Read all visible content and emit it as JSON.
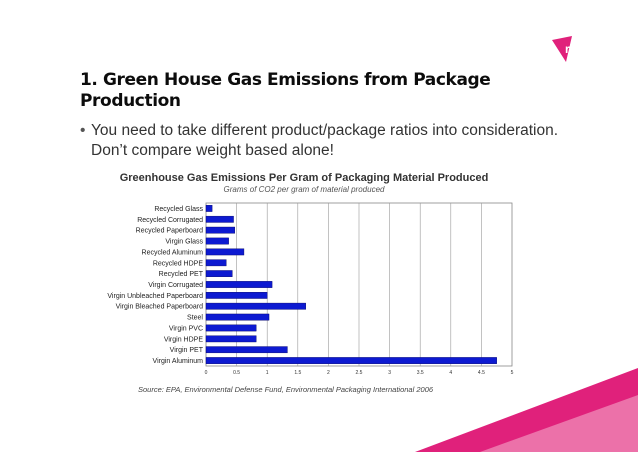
{
  "slide": {
    "title_line1": "1. Green House Gas Emissions from Package",
    "title_line2": "Production",
    "bullet_line1": "You need to take different product/package ratios into consideration.",
    "bullet_line2": "Don’t compare weight based alone!",
    "bullet_icon": "bullet-dot-icon",
    "logo_icon": "brand-logo-icon",
    "accent_color": "#e0217b"
  },
  "chart_data": {
    "type": "bar",
    "orientation": "horizontal",
    "title": "Greenhouse Gas Emissions Per Gram of Packaging Material Produced",
    "subtitle": "Grams of CO2 per gram of material produced",
    "source": "Source: EPA, Environmental Defense Fund, Environmental Packaging International 2006",
    "categories": [
      "Recycled Glass",
      "Recycled Corrugated",
      "Recycled Paperboard",
      "Virgin Glass",
      "Recycled Aluminum",
      "Recycled HDPE",
      "Recycled PET",
      "Virgin Corrugated",
      "Virgin Unbleached Paperboard",
      "Virgin Bleached Paperboard",
      "Steel",
      "Virgin PVC",
      "Virgin HDPE",
      "Virgin PET",
      "Virgin Aluminum"
    ],
    "values": [
      0.1,
      0.45,
      0.47,
      0.37,
      0.62,
      0.33,
      0.43,
      1.08,
      1.0,
      1.63,
      1.03,
      0.82,
      0.82,
      1.33,
      4.75
    ],
    "xlim": [
      0,
      5
    ],
    "xticks": [
      "0",
      "0.5",
      "1",
      "1.5",
      "2",
      "2.5",
      "3",
      "3.5",
      "4",
      "4.5",
      "5"
    ],
    "bar_color": "#0d1ad1",
    "grid": "vertical",
    "legend": "none"
  }
}
